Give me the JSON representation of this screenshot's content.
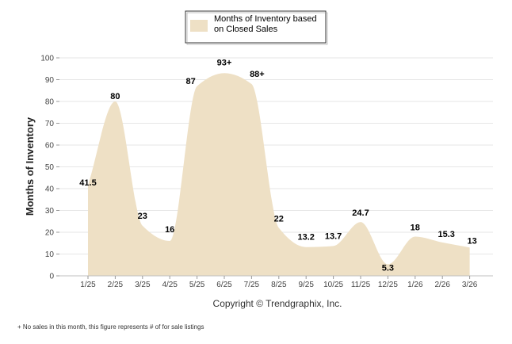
{
  "chart_data": {
    "type": "area",
    "title": "",
    "xlabel": "",
    "ylabel": "Months of Inventory",
    "ylim": [
      0,
      100
    ],
    "yticks": [
      0,
      10,
      20,
      30,
      40,
      50,
      60,
      70,
      80,
      90,
      100
    ],
    "grid": "horizontal",
    "categories": [
      "1/25",
      "2/25",
      "3/25",
      "4/25",
      "5/25",
      "6/25",
      "7/25",
      "8/25",
      "9/25",
      "10/25",
      "11/25",
      "12/25",
      "1/26",
      "2/26",
      "3/26"
    ],
    "series": [
      {
        "name": "Months of Inventory based on Closed Sales",
        "color": "#eee0c5",
        "values": [
          41.5,
          80,
          23,
          16,
          87,
          93,
          88,
          22,
          13.2,
          13.7,
          24.7,
          5.3,
          18,
          15.3,
          13
        ],
        "labels": [
          "41.5",
          "80",
          "23",
          "16",
          "87",
          "93+",
          "88+",
          "22",
          "13.2",
          "13.7",
          "24.7",
          "5.3",
          "18",
          "15.3",
          "13"
        ]
      }
    ],
    "legend": {
      "position": "top-center",
      "lines": [
        "Months of Inventory based",
        "on Closed Sales"
      ]
    },
    "copyright": "Copyright © Trendgraphix, Inc.",
    "footnote": "+  No sales in this month, this figure represents # of for sale listings"
  }
}
